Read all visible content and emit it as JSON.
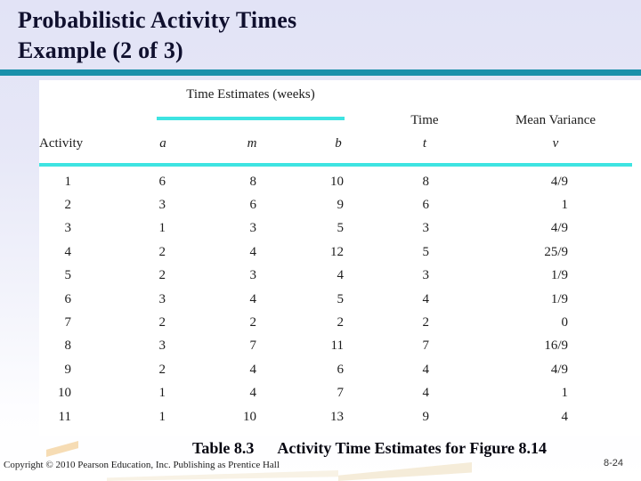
{
  "slide": {
    "title_line1": "Probabilistic Activity Times",
    "title_line2": "Example (2 of 3)",
    "caption_label": "Table 8.3",
    "caption_text": "Activity Time Estimates for Figure 8.14",
    "footer": {
      "copyright": "Copyright © 2010 Pearson Education, Inc. Publishing as Prentice Hall",
      "page_number": "8-24"
    }
  },
  "colors": {
    "title_text": "#10102e",
    "title_bar_teal": "#1a90aa",
    "table_rule_cyan": "#3ee4e2",
    "background_top": "#e2e3f6",
    "background_bottom": "#ffffff",
    "watermark_gray": "#d9d9d9",
    "watermark_cream": "#ecd9b4"
  },
  "chart_data": {
    "type": "table",
    "title": "Table 8.3 Activity Time Estimates for Figure 8.14",
    "group_header": "Time Estimates (weeks)",
    "group_spans": [
      "a",
      "m",
      "b"
    ],
    "headers": {
      "activity": "Activity",
      "a": "a",
      "m": "m",
      "b": "b",
      "time_label": "Time",
      "time_sub": "t",
      "variance_label": "Mean Variance",
      "variance_sub": "v"
    },
    "columns": [
      "Activity",
      "a",
      "m",
      "b",
      "t",
      "v"
    ],
    "rows": [
      [
        "1",
        "6",
        "8",
        "10",
        "8",
        "4/9"
      ],
      [
        "2",
        "3",
        "6",
        "9",
        "6",
        "1"
      ],
      [
        "3",
        "1",
        "3",
        "5",
        "3",
        "4/9"
      ],
      [
        "4",
        "2",
        "4",
        "12",
        "5",
        "25/9"
      ],
      [
        "5",
        "2",
        "3",
        "4",
        "3",
        "1/9"
      ],
      [
        "6",
        "3",
        "4",
        "5",
        "4",
        "1/9"
      ],
      [
        "7",
        "2",
        "2",
        "2",
        "2",
        "0"
      ],
      [
        "8",
        "3",
        "7",
        "11",
        "7",
        "16/9"
      ],
      [
        "9",
        "2",
        "4",
        "6",
        "4",
        "4/9"
      ],
      [
        "10",
        "1",
        "4",
        "7",
        "4",
        "1"
      ],
      [
        "11",
        "1",
        "10",
        "13",
        "9",
        "4"
      ]
    ]
  }
}
